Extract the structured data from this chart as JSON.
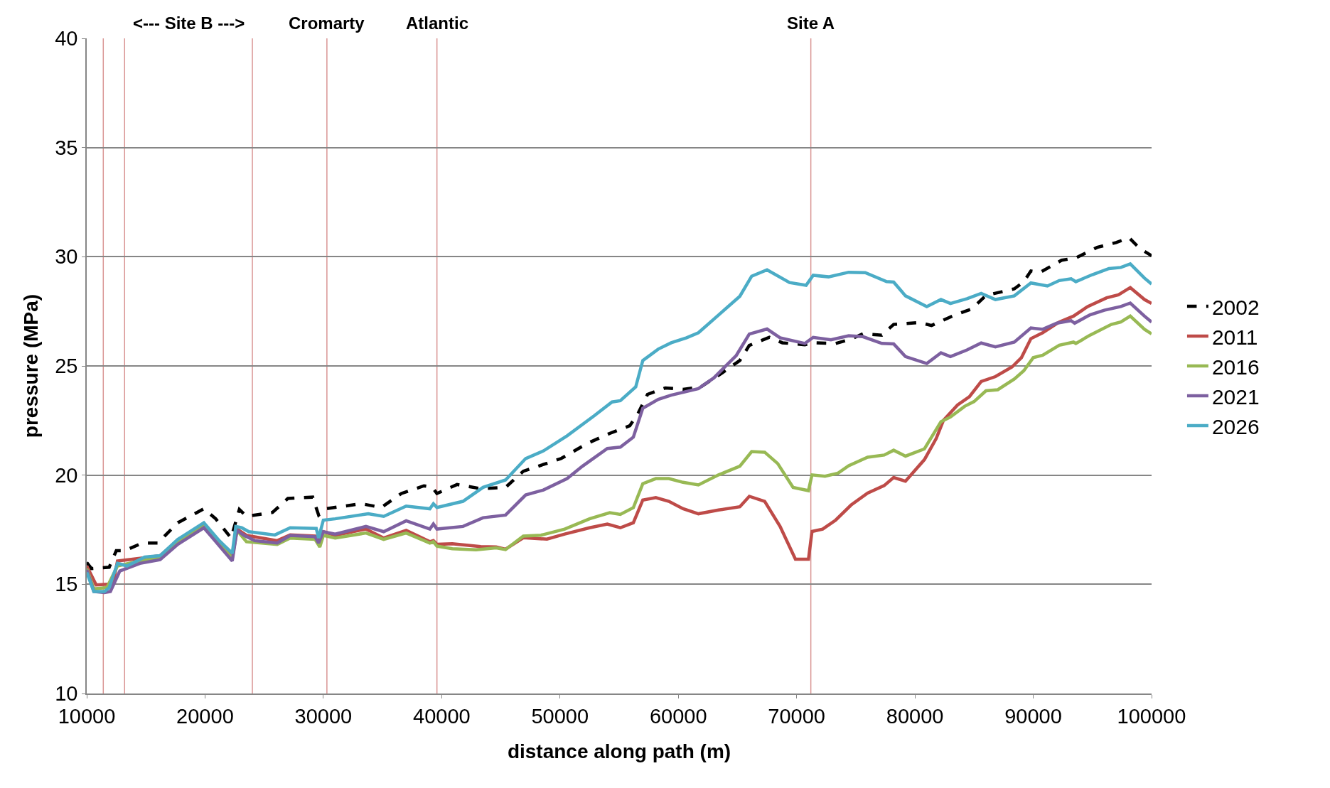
{
  "chart_data": {
    "type": "line",
    "xlabel": "distance along path (m)",
    "ylabel": "pressure (MPa)",
    "xlim": [
      10000,
      100000
    ],
    "xticks": [
      10000,
      20000,
      30000,
      40000,
      50000,
      60000,
      70000,
      80000,
      90000,
      100000
    ],
    "ylim": [
      10,
      40
    ],
    "yticks": [
      10,
      15,
      20,
      25,
      30,
      35,
      40
    ],
    "grid": "y",
    "legend": "right",
    "marker": "none",
    "ref_lines": [
      {
        "axis": "x",
        "value": 11400,
        "label": null,
        "color": "#d99594"
      },
      {
        "axis": "x",
        "value": 13200,
        "label": null,
        "color": "#d99594"
      },
      {
        "axis": "x",
        "value": 24000,
        "label": null,
        "color": "#d99594"
      },
      {
        "axis": "x",
        "value": 30300,
        "label": "Cromarty",
        "color": "#d99594"
      },
      {
        "axis": "x",
        "value": 39600,
        "label": "Atlantic",
        "color": "#d99594"
      },
      {
        "axis": "x",
        "value": 71200,
        "label": "Site A",
        "color": "#d99594"
      }
    ],
    "annotations": [
      "<--- Site B --->"
    ],
    "series": [
      {
        "name": "2002",
        "color": "#000000",
        "line_style": "dashed",
        "x": [
          10000,
          10400,
          11900,
          12500,
          13200,
          14700,
          16000,
          17700,
          19900,
          20900,
          22200,
          22900,
          23500,
          25700,
          27000,
          29100,
          29600,
          30200,
          33200,
          34900,
          36600,
          38500,
          39200,
          39600,
          41300,
          43300,
          45400,
          46900,
          50100,
          52300,
          54200,
          55900,
          56600,
          57400,
          58900,
          60400,
          61900,
          63700,
          65200,
          66000,
          67700,
          68800,
          70700,
          71400,
          73300,
          74600,
          75600,
          77200,
          78200,
          80400,
          81400,
          83400,
          84800,
          86000,
          88400,
          89200,
          89800,
          90600,
          92400,
          93600,
          95400,
          97000,
          98100,
          99000,
          100000
        ],
        "values": [
          16.0,
          15.72,
          15.78,
          16.54,
          16.54,
          16.89,
          16.89,
          17.82,
          18.46,
          18.0,
          17.12,
          18.43,
          18.11,
          18.29,
          18.93,
          18.99,
          18.17,
          18.46,
          18.69,
          18.52,
          19.16,
          19.51,
          19.45,
          19.16,
          19.57,
          19.38,
          19.44,
          20.18,
          20.76,
          21.45,
          21.91,
          22.26,
          22.83,
          23.7,
          23.99,
          23.93,
          24.04,
          24.68,
          25.25,
          25.94,
          26.31,
          26.06,
          25.97,
          26.06,
          26.03,
          26.23,
          26.47,
          26.41,
          26.9,
          26.99,
          26.85,
          27.34,
          27.61,
          28.23,
          28.53,
          28.86,
          29.35,
          29.29,
          29.84,
          29.95,
          30.43,
          30.65,
          30.87,
          30.38,
          30.05
        ]
      },
      {
        "name": "2011",
        "color": "#be4b48",
        "line_style": "solid",
        "x": [
          10000,
          10800,
          11700,
          12200,
          12600,
          14500,
          16200,
          17700,
          19900,
          21200,
          22300,
          22700,
          23500,
          26100,
          27200,
          29300,
          29600,
          30000,
          31000,
          33600,
          35100,
          37000,
          39000,
          39300,
          39600,
          40900,
          43300,
          44600,
          45400,
          46900,
          48900,
          50400,
          52500,
          54000,
          55100,
          56200,
          57000,
          58100,
          59200,
          60400,
          61700,
          63400,
          65200,
          66000,
          67300,
          68600,
          69900,
          71000,
          71300,
          72200,
          73300,
          74600,
          76000,
          77400,
          78200,
          79200,
          80800,
          81800,
          82400,
          83600,
          84600,
          85600,
          86800,
          88200,
          89000,
          89800,
          90800,
          92200,
          93400,
          94600,
          96200,
          97200,
          98200,
          99400,
          100000
        ],
        "values": [
          15.84,
          14.97,
          15.0,
          14.97,
          16.07,
          16.19,
          16.31,
          17.0,
          17.7,
          16.89,
          16.25,
          17.53,
          17.24,
          17.0,
          17.26,
          17.21,
          16.95,
          17.41,
          17.24,
          17.53,
          17.12,
          17.47,
          16.95,
          17.0,
          16.83,
          16.86,
          16.73,
          16.71,
          16.61,
          17.13,
          17.07,
          17.3,
          17.59,
          17.76,
          17.59,
          17.82,
          18.86,
          18.97,
          18.8,
          18.46,
          18.23,
          18.4,
          18.55,
          19.03,
          18.8,
          17.65,
          16.15,
          16.15,
          17.42,
          17.53,
          17.94,
          18.63,
          19.18,
          19.52,
          19.89,
          19.72,
          20.71,
          21.68,
          22.5,
          23.21,
          23.59,
          24.29,
          24.51,
          24.95,
          25.38,
          26.25,
          26.52,
          27.01,
          27.28,
          27.72,
          28.12,
          28.26,
          28.59,
          28.04,
          27.86
        ]
      },
      {
        "name": "2016",
        "color": "#98b954",
        "line_style": "solid",
        "x": [
          10000,
          10600,
          11700,
          12600,
          14500,
          16200,
          17700,
          19900,
          21200,
          22300,
          22700,
          23500,
          26100,
          27200,
          29300,
          29700,
          30000,
          31000,
          33600,
          35100,
          37000,
          39000,
          39300,
          39600,
          40900,
          42900,
          44600,
          45400,
          46900,
          48400,
          50400,
          52500,
          54200,
          55100,
          56200,
          57000,
          58100,
          59200,
          60400,
          61700,
          63400,
          65200,
          66200,
          67300,
          68400,
          69700,
          71000,
          71300,
          72400,
          73500,
          74400,
          76000,
          77400,
          78200,
          79200,
          80800,
          82200,
          83000,
          84200,
          85000,
          86000,
          87000,
          88400,
          89200,
          90000,
          90800,
          92200,
          93400,
          93600,
          94800,
          96600,
          97400,
          98200,
          99400,
          100000
        ],
        "values": [
          15.72,
          14.79,
          14.85,
          15.84,
          16.07,
          16.19,
          16.95,
          17.65,
          16.83,
          16.19,
          17.47,
          16.95,
          16.83,
          17.12,
          17.06,
          16.71,
          17.24,
          17.12,
          17.35,
          17.06,
          17.35,
          16.89,
          16.95,
          16.75,
          16.63,
          16.58,
          16.67,
          16.59,
          17.21,
          17.25,
          17.53,
          18.0,
          18.28,
          18.2,
          18.51,
          19.61,
          19.84,
          19.84,
          19.67,
          19.55,
          20.01,
          20.41,
          21.08,
          21.05,
          20.53,
          19.44,
          19.29,
          20.01,
          19.95,
          20.09,
          20.43,
          20.82,
          20.92,
          21.14,
          20.87,
          21.2,
          22.45,
          22.66,
          23.15,
          23.37,
          23.86,
          23.91,
          24.4,
          24.78,
          25.38,
          25.49,
          25.95,
          26.09,
          26.03,
          26.41,
          26.9,
          27.01,
          27.28,
          26.68,
          26.47
        ]
      },
      {
        "name": "2021",
        "color": "#7d60a0",
        "line_style": "solid",
        "x": [
          10000,
          10600,
          11500,
          12000,
          12800,
          14500,
          16200,
          17700,
          19900,
          21200,
          22300,
          22700,
          23300,
          24200,
          26100,
          27200,
          29300,
          29600,
          30000,
          31000,
          33600,
          35100,
          37000,
          39000,
          39300,
          39600,
          41800,
          43500,
          45400,
          47100,
          48600,
          50600,
          51900,
          54000,
          55100,
          56200,
          57000,
          58300,
          59400,
          61700,
          63000,
          64900,
          66000,
          67500,
          68600,
          70700,
          71400,
          72900,
          74400,
          75600,
          77200,
          78200,
          79200,
          81000,
          82200,
          83000,
          84400,
          85600,
          86800,
          88400,
          89800,
          90800,
          92000,
          93200,
          93500,
          94800,
          96000,
          97400,
          98200,
          99400,
          100000
        ],
        "values": [
          15.66,
          14.67,
          14.62,
          14.67,
          15.61,
          15.96,
          16.13,
          16.83,
          17.59,
          16.77,
          16.07,
          17.47,
          17.24,
          17.0,
          16.89,
          17.24,
          17.18,
          16.89,
          17.41,
          17.3,
          17.65,
          17.41,
          17.91,
          17.53,
          17.76,
          17.53,
          17.65,
          18.05,
          18.17,
          19.09,
          19.32,
          19.84,
          20.41,
          21.22,
          21.28,
          21.74,
          23.06,
          23.47,
          23.66,
          23.96,
          24.45,
          25.48,
          26.46,
          26.69,
          26.29,
          26.03,
          26.31,
          26.2,
          26.38,
          26.34,
          26.03,
          26.01,
          25.43,
          25.11,
          25.6,
          25.43,
          25.73,
          26.05,
          25.87,
          26.09,
          26.74,
          26.68,
          26.96,
          27.07,
          26.96,
          27.34,
          27.55,
          27.72,
          27.88,
          27.28,
          27.01
        ]
      },
      {
        "name": "2026",
        "color": "#4bacc6",
        "line_style": "solid",
        "x": [
          10000,
          10600,
          11500,
          11900,
          12600,
          13400,
          14900,
          16200,
          17700,
          19900,
          21200,
          22300,
          22600,
          23100,
          23700,
          25900,
          27200,
          29400,
          29600,
          30000,
          31000,
          33800,
          35100,
          37000,
          39000,
          39300,
          39600,
          41800,
          43500,
          45400,
          47100,
          48600,
          50600,
          52900,
          54400,
          55100,
          56400,
          57000,
          58300,
          59400,
          60700,
          61700,
          63400,
          65200,
          66200,
          67500,
          69400,
          70800,
          71400,
          72700,
          74400,
          75800,
          77600,
          78200,
          79200,
          81000,
          82200,
          83000,
          84400,
          85600,
          86800,
          88400,
          89800,
          91200,
          92200,
          93200,
          93600,
          95000,
          96400,
          97400,
          98200,
          99400,
          100000
        ],
        "values": [
          15.55,
          14.67,
          14.67,
          14.85,
          15.96,
          15.84,
          16.25,
          16.31,
          17.06,
          17.82,
          17.0,
          16.42,
          17.65,
          17.59,
          17.41,
          17.26,
          17.59,
          17.56,
          17.12,
          17.94,
          18.0,
          18.23,
          18.11,
          18.58,
          18.46,
          18.69,
          18.52,
          18.8,
          19.44,
          19.78,
          20.76,
          21.11,
          21.8,
          22.72,
          23.35,
          23.41,
          24.04,
          25.25,
          25.77,
          26.06,
          26.29,
          26.52,
          27.33,
          28.19,
          29.11,
          29.4,
          28.82,
          28.69,
          29.15,
          29.08,
          29.29,
          29.27,
          28.86,
          28.84,
          28.21,
          27.72,
          28.04,
          27.86,
          28.08,
          28.32,
          28.04,
          28.21,
          28.8,
          28.66,
          28.91,
          28.99,
          28.86,
          29.18,
          29.46,
          29.51,
          29.67,
          29.02,
          28.75
        ]
      }
    ]
  }
}
